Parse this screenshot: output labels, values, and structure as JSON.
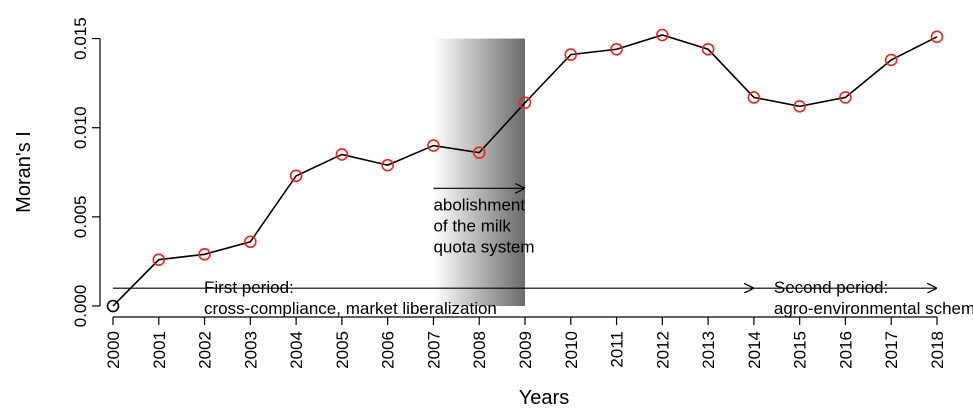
{
  "chart_data": {
    "type": "line",
    "x_label": "Years",
    "y_label": "Moran's I",
    "x": [
      2000,
      2001,
      2002,
      2003,
      2004,
      2005,
      2006,
      2007,
      2008,
      2009,
      2010,
      2011,
      2012,
      2013,
      2014,
      2015,
      2016,
      2017,
      2018
    ],
    "series": [
      {
        "color": "#000000",
        "values": [
          0,
          0.0026,
          0.0029,
          0.0036,
          0.0073,
          0.0085,
          0.0079,
          0.009,
          0.0086,
          0.0114,
          0.0141,
          0.0144,
          0.0152,
          0.0144,
          0.0117,
          0.0112,
          0.0117,
          0.0138,
          0.0151
        ],
        "point_colors": [
          "#000000",
          "#e8261e",
          "#e8261e",
          "#e8261e",
          "#e8261e",
          "#e8261e",
          "#e8261e",
          "#e8261e",
          "#e8261e",
          "#e8261e",
          "#e8261e",
          "#e8261e",
          "#e8261e",
          "#e8261e",
          "#e8261e",
          "#e8261e",
          "#e8261e",
          "#e8261e",
          "#e8261e"
        ]
      }
    ],
    "xlim": [
      2000,
      2018
    ],
    "xticks": [
      2000,
      2001,
      2002,
      2003,
      2004,
      2005,
      2006,
      2007,
      2008,
      2009,
      2010,
      2011,
      2012,
      2013,
      2014,
      2015,
      2016,
      2017,
      2018
    ],
    "ylim": [
      0,
      0.0152
    ],
    "yticks": [
      {
        "value": 0,
        "label": "0.000"
      },
      {
        "value": 0.005,
        "label": "0.005"
      },
      {
        "value": 0.01,
        "label": "0.010"
      },
      {
        "value": 0.015,
        "label": "0.015"
      }
    ],
    "shade": {
      "x": [
        2007,
        2009
      ],
      "y": [
        0,
        0.015
      ]
    },
    "annotations": [
      {
        "lines": [
          "abolishment",
          "of the milk",
          "quota system"
        ],
        "x_start": 2007,
        "x_end": 2009,
        "y": 0.0066
      },
      {
        "lines": [
          "First period:",
          "cross-compliance, market liberalization"
        ],
        "x_start": 2000,
        "x_end": 2014,
        "y": 0.001
      },
      {
        "lines": [
          "Second period:",
          "agro-environmental schem"
        ],
        "x_start": 2014,
        "x_end": 2018,
        "y": 0.001
      }
    ]
  }
}
